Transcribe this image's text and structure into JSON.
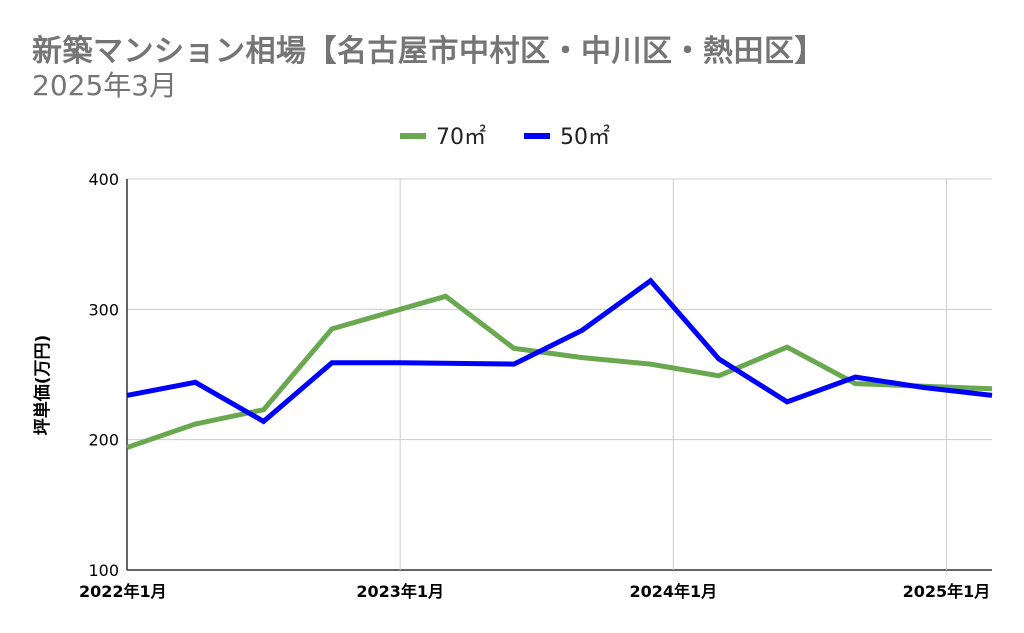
{
  "chart_data": {
    "type": "line",
    "title": "新築マンション相場【名古屋市中村区・中川区・熱田区】",
    "subtitle": "2025年3月",
    "xlabel": "",
    "ylabel": "坪単価(万円)",
    "ylim": [
      100,
      400
    ],
    "yticks": [
      "100",
      "200",
      "300",
      "400"
    ],
    "xticks": [
      "2022年1月",
      "2023年1月",
      "2024年1月",
      "2025年1月"
    ],
    "xtick_dates": [
      "2022-01",
      "2023-01",
      "2024-01",
      "2025-01"
    ],
    "xlim": [
      "2022-01",
      "2025-03"
    ],
    "grid": true,
    "legend_position": "top",
    "series": [
      {
        "name": "70㎡",
        "color": "#6aa84f",
        "x": [
          "2022-01",
          "2022-04",
          "2022-07",
          "2022-10",
          "2023-01",
          "2023-03",
          "2023-06",
          "2023-09",
          "2023-12",
          "2024-03",
          "2024-06",
          "2024-09",
          "2024-12",
          "2025-03"
        ],
        "values": [
          194,
          212,
          223,
          285,
          300,
          310,
          270,
          263,
          258,
          249,
          271,
          243,
          241,
          239
        ]
      },
      {
        "name": "50㎡",
        "color": "#0000ff",
        "x": [
          "2022-01",
          "2022-04",
          "2022-07",
          "2022-10",
          "2023-01",
          "2023-06",
          "2023-09",
          "2023-12",
          "2024-03",
          "2024-06",
          "2024-09",
          "2024-12",
          "2025-03"
        ],
        "values": [
          234,
          244,
          214,
          259,
          259,
          258,
          284,
          322,
          262,
          229,
          248,
          240,
          234
        ]
      }
    ]
  }
}
